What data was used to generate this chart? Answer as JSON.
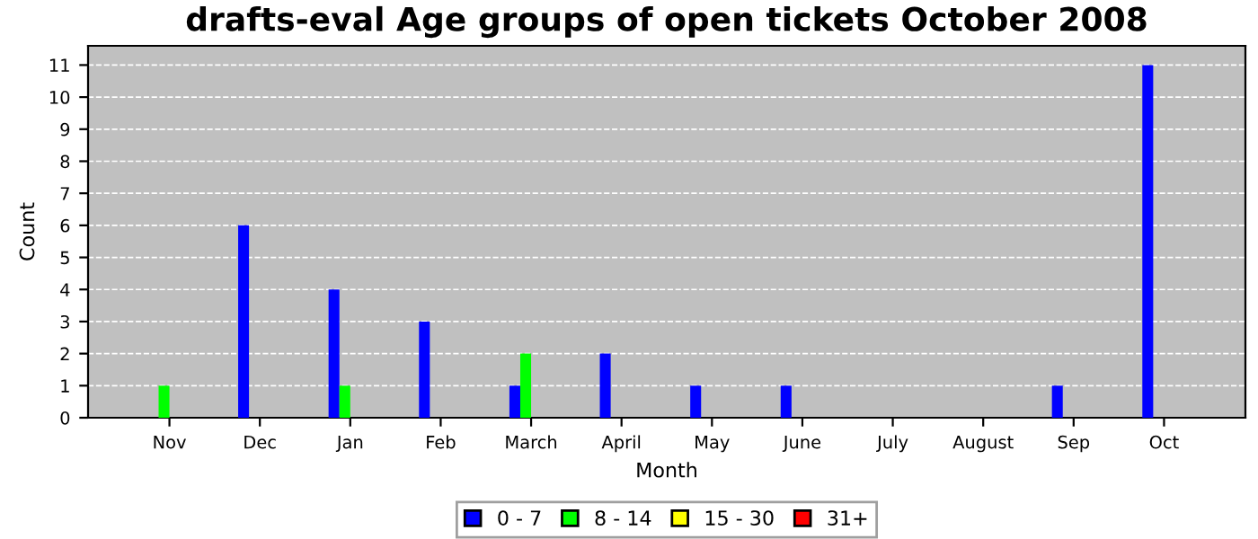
{
  "chart_data": {
    "type": "bar",
    "title": "drafts-eval Age groups of open tickets October 2008",
    "xlabel": "Month",
    "ylabel": "Count",
    "categories": [
      "Nov",
      "Dec",
      "Jan",
      "Feb",
      "March",
      "April",
      "May",
      "June",
      "July",
      "August",
      "Sep",
      "Oct"
    ],
    "series": [
      {
        "name": "0 - 7",
        "color": "#0000ff",
        "values": [
          0,
          6,
          4,
          3,
          1,
          2,
          1,
          1,
          0,
          0,
          1,
          11
        ]
      },
      {
        "name": "8 - 14",
        "color": "#00ff00",
        "values": [
          1,
          0,
          1,
          0,
          2,
          0,
          0,
          0,
          0,
          0,
          0,
          0
        ]
      },
      {
        "name": "15 - 30",
        "color": "#ffff00",
        "values": [
          0,
          0,
          0,
          0,
          0,
          0,
          0,
          0,
          0,
          0,
          0,
          0
        ]
      },
      {
        "name": "31+",
        "color": "#ff0000",
        "values": [
          0,
          0,
          0,
          0,
          0,
          0,
          0,
          0,
          0,
          0,
          0,
          0
        ]
      }
    ],
    "ylim": [
      0,
      11.6
    ],
    "yticks": [
      0,
      1,
      2,
      3,
      4,
      5,
      6,
      7,
      8,
      9,
      10,
      11
    ],
    "grid": "y",
    "legend": "bottom"
  }
}
